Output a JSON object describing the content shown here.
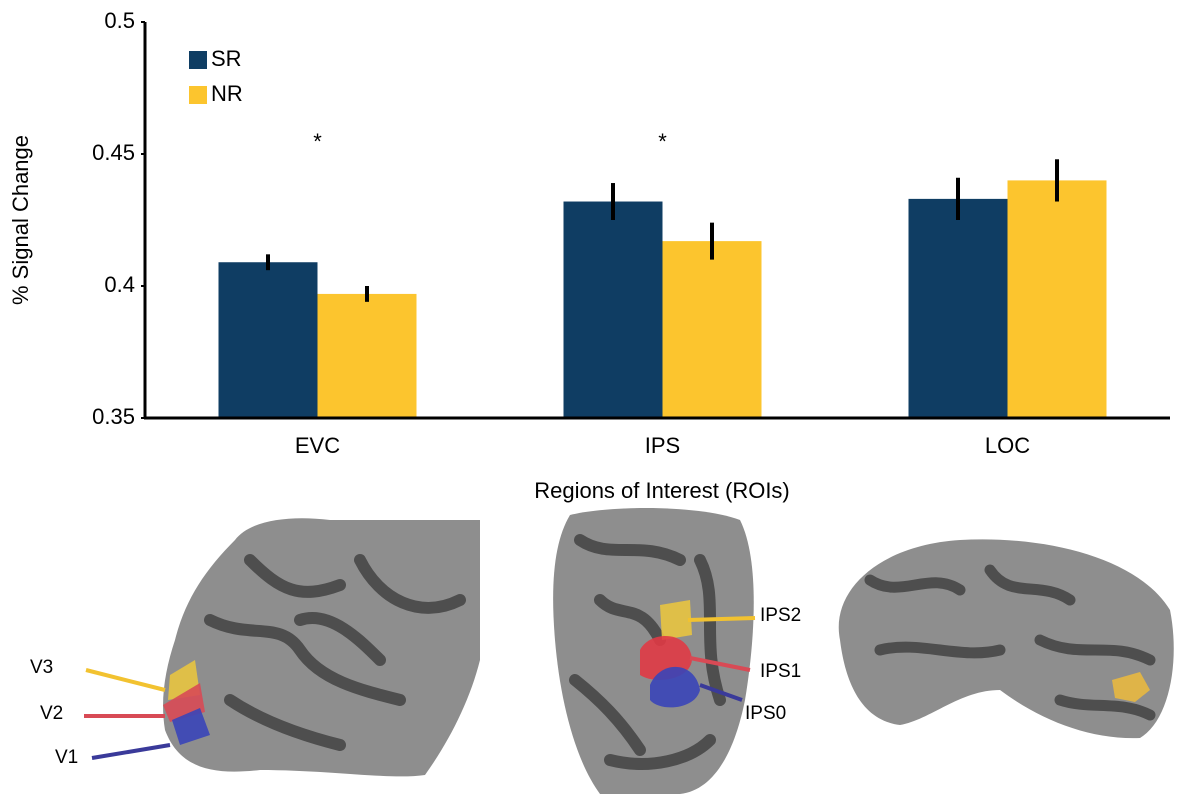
{
  "chart_data": {
    "type": "bar",
    "y_axis_label": "% Signal Change",
    "x_axis_label": "Regions of Interest (ROIs)",
    "categories": [
      "EVC",
      "IPS",
      "LOC"
    ],
    "series": [
      {
        "name": "SR",
        "color": "#0f3d63",
        "values": [
          0.409,
          0.432,
          0.433
        ],
        "errors": [
          0.003,
          0.007,
          0.008
        ]
      },
      {
        "name": "NR",
        "color": "#fcc52e",
        "values": [
          0.397,
          0.417,
          0.44
        ],
        "errors": [
          0.003,
          0.007,
          0.008
        ]
      }
    ],
    "significance_labels": [
      "*",
      "*",
      null
    ],
    "ylim": [
      0.35,
      0.5
    ],
    "yticks": [
      0.35,
      0.4,
      0.45,
      0.5
    ],
    "grid": false,
    "legend": "top-left",
    "roi_labels": [
      [
        "V3",
        "V2",
        "V1"
      ],
      [
        "IPS2",
        "IPS1",
        "IPS0"
      ]
    ]
  }
}
